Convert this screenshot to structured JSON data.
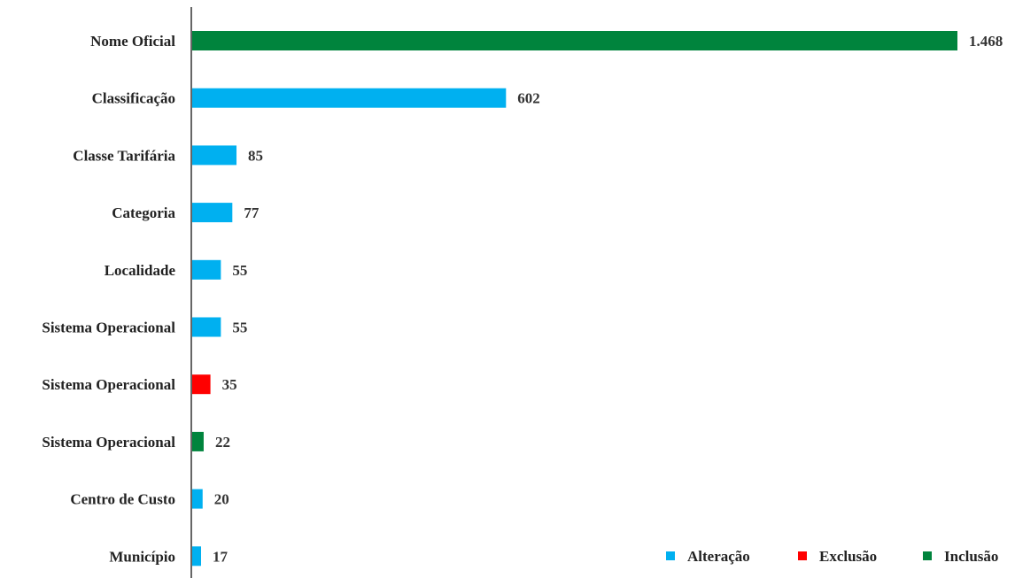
{
  "chart_data": {
    "type": "bar",
    "orientation": "horizontal",
    "title": "",
    "xlabel": "",
    "ylabel": "",
    "xlim": [
      0,
      1468
    ],
    "grid": false,
    "legend_placement": "bottom-right",
    "categories": [
      "Nome Oficial",
      "Classificação",
      "Classe Tarifária",
      "Categoria",
      "Localidade",
      "Sistema Operacional",
      "Sistema Operacional",
      "Sistema Operacional",
      "Centro de Custo",
      "Município"
    ],
    "values": [
      1468,
      602,
      85,
      77,
      55,
      55,
      35,
      22,
      20,
      17
    ],
    "value_labels": [
      "1.468",
      "602",
      "85",
      "77",
      "55",
      "55",
      "35",
      "22",
      "20",
      "17"
    ],
    "bar_series": [
      "Inclusão",
      "Alteração",
      "Alteração",
      "Alteração",
      "Alteração",
      "Alteração",
      "Exclusão",
      "Inclusão",
      "Alteração",
      "Alteração"
    ],
    "legend": [
      {
        "name": "Alteração",
        "color": "#00b0f0"
      },
      {
        "name": "Exclusão",
        "color": "#ff0000"
      },
      {
        "name": "Inclusão",
        "color": "#00843d"
      }
    ]
  }
}
